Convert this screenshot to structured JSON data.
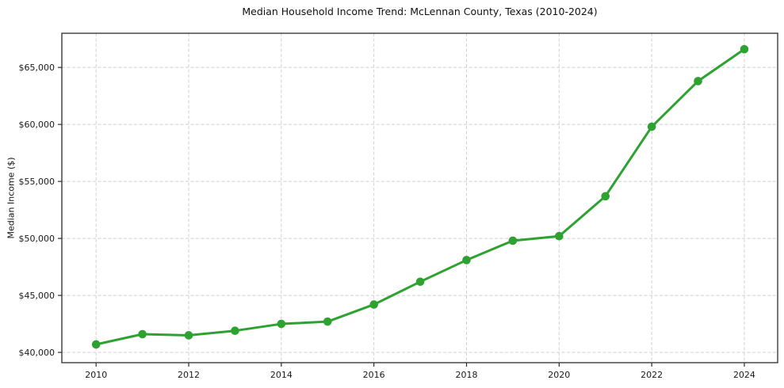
{
  "chart_data": {
    "type": "line",
    "title": "Median Household Income Trend: McLennan County, Texas (2010-2024)",
    "xlabel": "",
    "ylabel": "Median Income ($)",
    "legend": "none",
    "grid": true,
    "grid_style": "dashed",
    "xlim": [
      2009.26,
      2024.72
    ],
    "ylim": [
      39100,
      68000
    ],
    "x": [
      2010,
      2011,
      2012,
      2013,
      2014,
      2015,
      2016,
      2017,
      2018,
      2019,
      2020,
      2021,
      2022,
      2023,
      2024
    ],
    "series": [
      {
        "name": "Median Household Income",
        "color": "#2ea230",
        "marker": "circle",
        "values": [
          40700,
          41600,
          41500,
          41900,
          42500,
          42700,
          44200,
          46200,
          48100,
          49800,
          50200,
          53700,
          59800,
          63800,
          66600
        ]
      }
    ],
    "x_ticks": [
      {
        "value": 2010,
        "label": "2010"
      },
      {
        "value": 2012,
        "label": "2012"
      },
      {
        "value": 2014,
        "label": "2014"
      },
      {
        "value": 2016,
        "label": "2016"
      },
      {
        "value": 2018,
        "label": "2018"
      },
      {
        "value": 2020,
        "label": "2020"
      },
      {
        "value": 2022,
        "label": "2022"
      },
      {
        "value": 2024,
        "label": "2024"
      }
    ],
    "y_ticks": [
      {
        "value": 40000,
        "label": "$40,000"
      },
      {
        "value": 45000,
        "label": "$45,000"
      },
      {
        "value": 50000,
        "label": "$50,000"
      },
      {
        "value": 55000,
        "label": "$55,000"
      },
      {
        "value": 60000,
        "label": "$60,000"
      },
      {
        "value": 65000,
        "label": "$65,000"
      }
    ],
    "colors": {
      "background": "#ffffff",
      "line": "#2ea230",
      "grid": "#d0d0d0",
      "axis_border": "#2b2b2b",
      "tick_label": "#1a1a1a",
      "title": "#111111"
    }
  }
}
